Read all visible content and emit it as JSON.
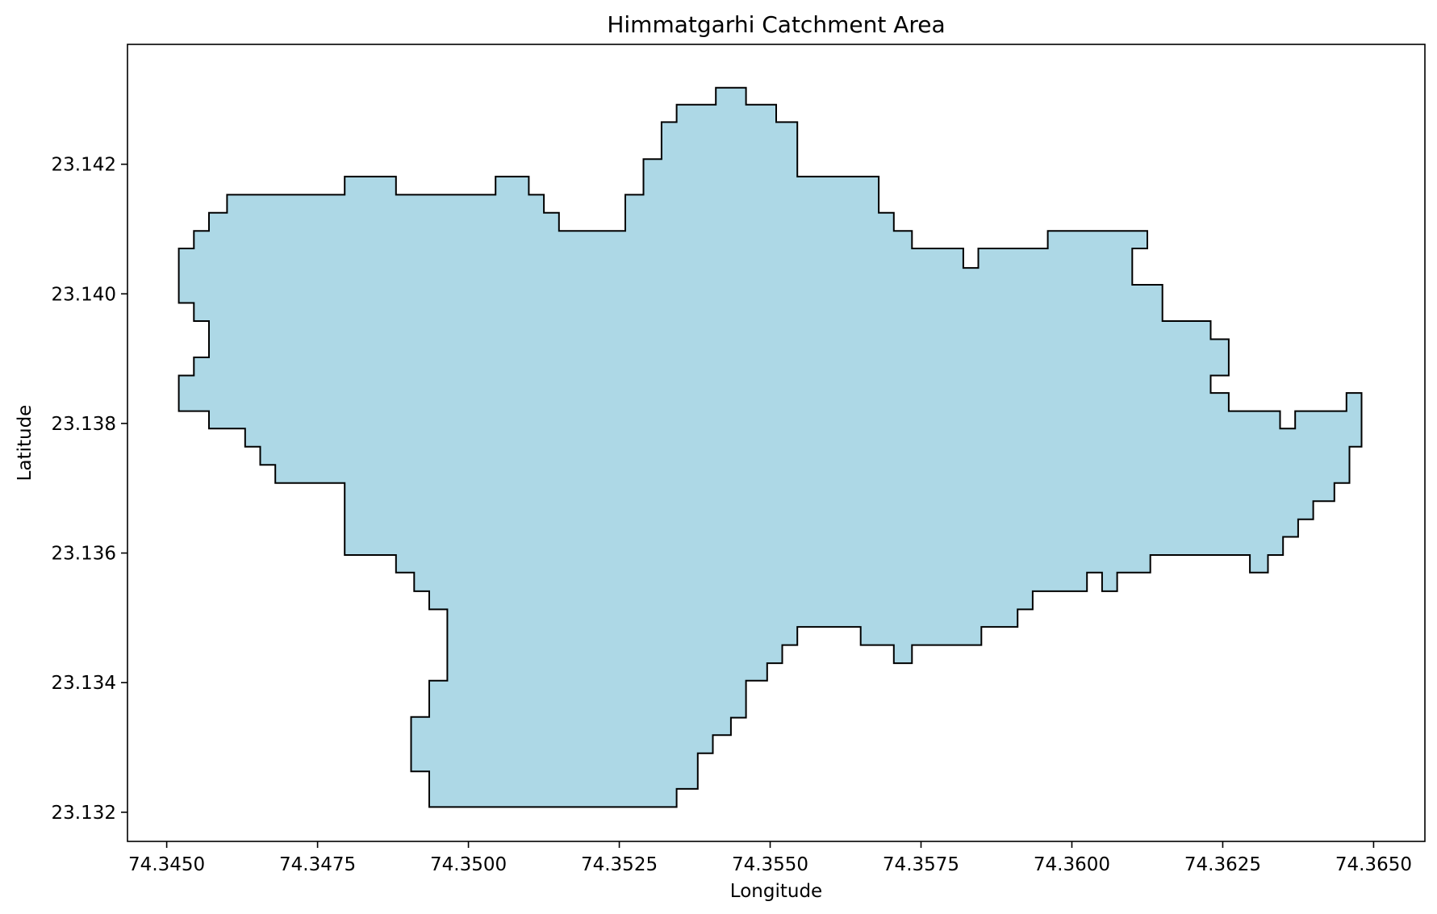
{
  "chart_data": {
    "type": "map",
    "title": "Himmatgarhi Catchment Area",
    "xlabel": "Longitude",
    "ylabel": "Latitude",
    "xlim": [
      74.34435,
      74.36585
    ],
    "ylim": [
      23.13155,
      23.14385
    ],
    "x_ticks": [
      {
        "value": 74.345,
        "label": "74.3450"
      },
      {
        "value": 74.3475,
        "label": "74.3475"
      },
      {
        "value": 74.35,
        "label": "74.3500"
      },
      {
        "value": 74.3525,
        "label": "74.3525"
      },
      {
        "value": 74.355,
        "label": "74.3550"
      },
      {
        "value": 74.3575,
        "label": "74.3575"
      },
      {
        "value": 74.36,
        "label": "74.3600"
      },
      {
        "value": 74.3625,
        "label": "74.3625"
      },
      {
        "value": 74.365,
        "label": "74.3650"
      }
    ],
    "y_ticks": [
      {
        "value": 23.132,
        "label": "23.132"
      },
      {
        "value": 23.134,
        "label": "23.134"
      },
      {
        "value": 23.136,
        "label": "23.136"
      },
      {
        "value": 23.138,
        "label": "23.138"
      },
      {
        "value": 23.14,
        "label": "23.140"
      },
      {
        "value": 23.142,
        "label": "23.142"
      }
    ],
    "grid": false,
    "fill_color": "#add8e6",
    "edge_color": "#000000",
    "boundary": [
      [
        74.3541,
        23.14318
      ],
      [
        74.3546,
        23.14318
      ],
      [
        74.3546,
        23.14292
      ],
      [
        74.3551,
        23.14292
      ],
      [
        74.3551,
        23.14265
      ],
      [
        74.35545,
        23.14265
      ],
      [
        74.35545,
        23.14181
      ],
      [
        74.3568,
        23.14181
      ],
      [
        74.3568,
        23.14125
      ],
      [
        74.35705,
        23.14125
      ],
      [
        74.35705,
        23.14097
      ],
      [
        74.35735,
        23.14097
      ],
      [
        74.35735,
        23.1407
      ],
      [
        74.3582,
        23.1407
      ],
      [
        74.3582,
        23.1404
      ],
      [
        74.35845,
        23.1404
      ],
      [
        74.35845,
        23.1407
      ],
      [
        74.3596,
        23.1407
      ],
      [
        74.3596,
        23.14097
      ],
      [
        74.36125,
        23.14097
      ],
      [
        74.36125,
        23.1407
      ],
      [
        74.361,
        23.1407
      ],
      [
        74.361,
        23.14014
      ],
      [
        74.3615,
        23.14014
      ],
      [
        74.3615,
        23.13958
      ],
      [
        74.3623,
        23.13958
      ],
      [
        74.3623,
        23.1393
      ],
      [
        74.3626,
        23.1393
      ],
      [
        74.3626,
        23.13874
      ],
      [
        74.3623,
        23.13874
      ],
      [
        74.3623,
        23.13847
      ],
      [
        74.3626,
        23.13847
      ],
      [
        74.3626,
        23.13819
      ],
      [
        74.36345,
        23.13819
      ],
      [
        74.36345,
        23.13792
      ],
      [
        74.3637,
        23.13792
      ],
      [
        74.3637,
        23.13819
      ],
      [
        74.36455,
        23.13819
      ],
      [
        74.36455,
        23.13847
      ],
      [
        74.3648,
        23.13847
      ],
      [
        74.3648,
        23.13764
      ],
      [
        74.3646,
        23.13764
      ],
      [
        74.3646,
        23.13708
      ],
      [
        74.36435,
        23.13708
      ],
      [
        74.36435,
        23.1368
      ],
      [
        74.364,
        23.1368
      ],
      [
        74.364,
        23.13652
      ],
      [
        74.36375,
        23.13652
      ],
      [
        74.36375,
        23.13625
      ],
      [
        74.3635,
        23.13625
      ],
      [
        74.3635,
        23.13597
      ],
      [
        74.36325,
        23.13597
      ],
      [
        74.36325,
        23.1357
      ],
      [
        74.36295,
        23.1357
      ],
      [
        74.36295,
        23.13597
      ],
      [
        74.3613,
        23.13597
      ],
      [
        74.3613,
        23.1357
      ],
      [
        74.36075,
        23.1357
      ],
      [
        74.36075,
        23.13541
      ],
      [
        74.3605,
        23.13541
      ],
      [
        74.3605,
        23.1357
      ],
      [
        74.36025,
        23.1357
      ],
      [
        74.36025,
        23.13541
      ],
      [
        74.35935,
        23.13541
      ],
      [
        74.35935,
        23.13513
      ],
      [
        74.3591,
        23.13513
      ],
      [
        74.3591,
        23.13486
      ],
      [
        74.3585,
        23.13486
      ],
      [
        74.3585,
        23.13458
      ],
      [
        74.35735,
        23.13458
      ],
      [
        74.35735,
        23.1343
      ],
      [
        74.35705,
        23.1343
      ],
      [
        74.35705,
        23.13458
      ],
      [
        74.3565,
        23.13458
      ],
      [
        74.3565,
        23.13486
      ],
      [
        74.35545,
        23.13486
      ],
      [
        74.35545,
        23.13458
      ],
      [
        74.3552,
        23.13458
      ],
      [
        74.3552,
        23.1343
      ],
      [
        74.35495,
        23.1343
      ],
      [
        74.35495,
        23.13403
      ],
      [
        74.3546,
        23.13403
      ],
      [
        74.3546,
        23.13346
      ],
      [
        74.35435,
        23.13346
      ],
      [
        74.35435,
        23.13319
      ],
      [
        74.35405,
        23.13319
      ],
      [
        74.35405,
        23.13291
      ],
      [
        74.3538,
        23.13291
      ],
      [
        74.3538,
        23.13236
      ],
      [
        74.35345,
        23.13236
      ],
      [
        74.35345,
        23.13208
      ],
      [
        74.34935,
        23.13208
      ],
      [
        74.34935,
        23.13263
      ],
      [
        74.34905,
        23.13263
      ],
      [
        74.34905,
        23.13347
      ],
      [
        74.34935,
        23.13347
      ],
      [
        74.34935,
        23.13403
      ],
      [
        74.34965,
        23.13403
      ],
      [
        74.34965,
        23.13513
      ],
      [
        74.34935,
        23.13513
      ],
      [
        74.34935,
        23.13541
      ],
      [
        74.3491,
        23.13541
      ],
      [
        74.3491,
        23.1357
      ],
      [
        74.3488,
        23.1357
      ],
      [
        74.3488,
        23.13597
      ],
      [
        74.34795,
        23.13597
      ],
      [
        74.34795,
        23.13708
      ],
      [
        74.3468,
        23.13708
      ],
      [
        74.3468,
        23.13736
      ],
      [
        74.34655,
        23.13736
      ],
      [
        74.34655,
        23.13764
      ],
      [
        74.3463,
        23.13764
      ],
      [
        74.3463,
        23.13792
      ],
      [
        74.3457,
        23.13792
      ],
      [
        74.3457,
        23.13819
      ],
      [
        74.3452,
        23.13819
      ],
      [
        74.3452,
        23.13874
      ],
      [
        74.34545,
        23.13874
      ],
      [
        74.34545,
        23.13902
      ],
      [
        74.3457,
        23.13902
      ],
      [
        74.3457,
        23.13958
      ],
      [
        74.34545,
        23.13958
      ],
      [
        74.34545,
        23.13986
      ],
      [
        74.3452,
        23.13986
      ],
      [
        74.3452,
        23.1407
      ],
      [
        74.34545,
        23.1407
      ],
      [
        74.34545,
        23.14097
      ],
      [
        74.3457,
        23.14097
      ],
      [
        74.3457,
        23.14125
      ],
      [
        74.346,
        23.14125
      ],
      [
        74.346,
        23.14153
      ],
      [
        74.34795,
        23.14153
      ],
      [
        74.34795,
        23.14181
      ],
      [
        74.3488,
        23.14181
      ],
      [
        74.3488,
        23.14153
      ],
      [
        74.35045,
        23.14153
      ],
      [
        74.35045,
        23.14181
      ],
      [
        74.351,
        23.14181
      ],
      [
        74.351,
        23.14153
      ],
      [
        74.35125,
        23.14153
      ],
      [
        74.35125,
        23.14125
      ],
      [
        74.3515,
        23.14125
      ],
      [
        74.3515,
        23.14097
      ],
      [
        74.3526,
        23.14097
      ],
      [
        74.3526,
        23.14153
      ],
      [
        74.3529,
        23.14153
      ],
      [
        74.3529,
        23.14208
      ],
      [
        74.3532,
        23.14208
      ],
      [
        74.3532,
        23.14265
      ],
      [
        74.35345,
        23.14265
      ],
      [
        74.35345,
        23.14292
      ],
      [
        74.3541,
        23.14292
      ]
    ]
  }
}
